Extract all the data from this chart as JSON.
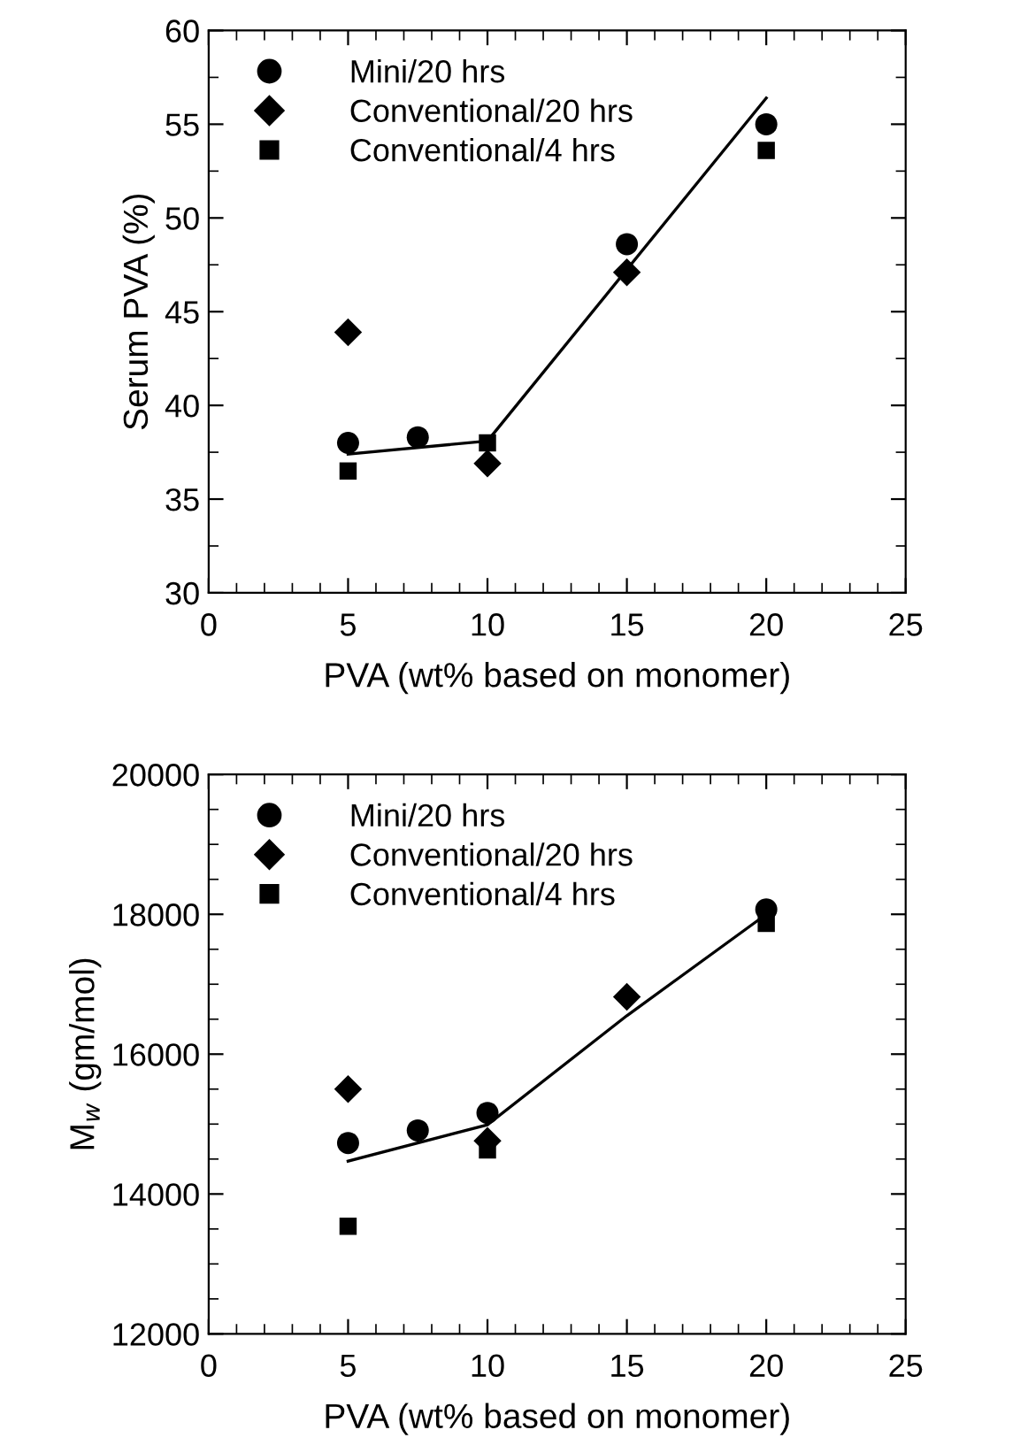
{
  "chart_data": [
    {
      "type": "scatter",
      "xlabel": "PVA (wt% based on monomer)",
      "ylabel": "Serum PVA (%)",
      "legend": "top left",
      "grid": false,
      "xlim": [
        0,
        25
      ],
      "xticks": [
        0,
        {
          "value": 1,
          "label": null
        },
        {
          "value": 2,
          "label": null
        },
        {
          "value": 3,
          "label": null
        },
        {
          "value": 4,
          "label": null
        },
        5,
        {
          "value": 6,
          "label": null
        },
        {
          "value": 7,
          "label": null
        },
        {
          "value": 8,
          "label": null
        },
        {
          "value": 9,
          "label": null
        },
        10,
        {
          "value": 11,
          "label": null
        },
        {
          "value": 12,
          "label": null
        },
        {
          "value": 13,
          "label": null
        },
        {
          "value": 14,
          "label": null
        },
        15,
        {
          "value": 16,
          "label": null
        },
        {
          "value": 17,
          "label": null
        },
        {
          "value": 18,
          "label": null
        },
        {
          "value": 19,
          "label": null
        },
        20,
        {
          "value": 21,
          "label": null
        },
        {
          "value": 22,
          "label": null
        },
        {
          "value": 23,
          "label": null
        },
        {
          "value": 24,
          "label": null
        },
        25
      ],
      "ylim": [
        30,
        60
      ],
      "yticks": [
        30,
        {
          "value": 32.5,
          "label": null
        },
        35,
        {
          "value": 37.5,
          "label": null
        },
        40,
        {
          "value": 42.5,
          "label": null
        },
        45,
        {
          "value": 47.5,
          "label": null
        },
        50,
        {
          "value": 52.5,
          "label": null
        },
        55,
        {
          "value": 57.5,
          "label": null
        },
        60
      ],
      "series": [
        {
          "name": "Mini/20 hrs",
          "color": "#000000",
          "marker": "circle",
          "x": [
            5,
            7.5,
            15,
            20
          ],
          "values": [
            38.0,
            38.3,
            48.6,
            55.0
          ]
        },
        {
          "name": "Conventional/20 hrs",
          "color": "#000000",
          "marker": "diamond",
          "x": [
            5,
            10,
            15
          ],
          "values": [
            43.9,
            36.9,
            47.1
          ]
        },
        {
          "name": "Conventional/4 hrs",
          "color": "#000000",
          "marker": "square",
          "x": [
            5,
            10,
            20
          ],
          "values": [
            36.5,
            38.0,
            53.6
          ]
        },
        {
          "type": "line",
          "color": "#000000",
          "marker": "none",
          "line_style": "solid",
          "x": [
            5,
            10,
            20
          ],
          "values": [
            37.4,
            38.1,
            56.4
          ]
        }
      ]
    },
    {
      "type": "scatter",
      "xlabel": "PVA (wt% based on monomer)",
      "ylabel": "M$_{w}$ (gm/mol)",
      "legend": "top left",
      "grid": false,
      "xlim": [
        0,
        25
      ],
      "xticks": [
        0,
        {
          "value": 1,
          "label": null
        },
        {
          "value": 2,
          "label": null
        },
        {
          "value": 3,
          "label": null
        },
        {
          "value": 4,
          "label": null
        },
        5,
        {
          "value": 6,
          "label": null
        },
        {
          "value": 7,
          "label": null
        },
        {
          "value": 8,
          "label": null
        },
        {
          "value": 9,
          "label": null
        },
        10,
        {
          "value": 11,
          "label": null
        },
        {
          "value": 12,
          "label": null
        },
        {
          "value": 13,
          "label": null
        },
        {
          "value": 14,
          "label": null
        },
        15,
        {
          "value": 16,
          "label": null
        },
        {
          "value": 17,
          "label": null
        },
        {
          "value": 18,
          "label": null
        },
        {
          "value": 19,
          "label": null
        },
        20,
        {
          "value": 21,
          "label": null
        },
        {
          "value": 22,
          "label": null
        },
        {
          "value": 23,
          "label": null
        },
        {
          "value": 24,
          "label": null
        },
        25
      ],
      "ylim": [
        12000,
        20000
      ],
      "yticks": [
        12000,
        {
          "value": 12500,
          "label": null
        },
        {
          "value": 13000,
          "label": null
        },
        {
          "value": 13500,
          "label": null
        },
        14000,
        {
          "value": 14500,
          "label": null
        },
        {
          "value": 15000,
          "label": null
        },
        {
          "value": 15500,
          "label": null
        },
        16000,
        {
          "value": 16500,
          "label": null
        },
        {
          "value": 17000,
          "label": null
        },
        {
          "value": 17500,
          "label": null
        },
        18000,
        {
          "value": 18500,
          "label": null
        },
        {
          "value": 19000,
          "label": null
        },
        {
          "value": 19500,
          "label": null
        },
        20000
      ],
      "series": [
        {
          "name": "Mini/20 hrs",
          "color": "#000000",
          "marker": "circle",
          "x": [
            5,
            7.5,
            10,
            20
          ],
          "values": [
            14730,
            14910,
            15160,
            18070
          ]
        },
        {
          "name": "Conventional/20 hrs",
          "color": "#000000",
          "marker": "diamond",
          "x": [
            5,
            10,
            15
          ],
          "values": [
            15500,
            14760,
            16820
          ]
        },
        {
          "name": "Conventional/4 hrs",
          "color": "#000000",
          "marker": "square",
          "x": [
            5,
            10,
            20
          ],
          "values": [
            13540,
            14630,
            17870
          ]
        },
        {
          "type": "line",
          "color": "#000000",
          "marker": "none",
          "line_style": "solid",
          "x": [
            5,
            10,
            15,
            20
          ],
          "values": [
            14470,
            14990,
            16550,
            18000
          ]
        }
      ]
    }
  ]
}
